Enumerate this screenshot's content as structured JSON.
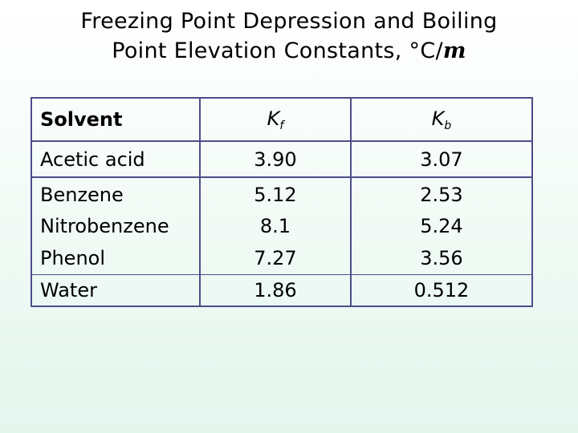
{
  "title": {
    "line1": "Freezing Point Depression and Boiling",
    "line2": "Point Elevation Constants, °C/",
    "unit": "m"
  },
  "table": {
    "headers": {
      "solvent": "Solvent",
      "kf_symbol": "K",
      "kf_subscript": "f",
      "kb_symbol": "K",
      "kb_subscript": "b"
    },
    "rows": [
      {
        "solvent": "Acetic acid",
        "kf": "3.90",
        "kb": "3.07"
      },
      {
        "solvent": "Benzene",
        "kf": "5.12",
        "kb": "2.53"
      },
      {
        "solvent": "Nitrobenzene",
        "kf": "8.1",
        "kb": "5.24"
      },
      {
        "solvent": "Phenol",
        "kf": "7.27",
        "kb": "3.56"
      },
      {
        "solvent": "Water",
        "kf": "1.86",
        "kb": "0.512"
      }
    ]
  }
}
